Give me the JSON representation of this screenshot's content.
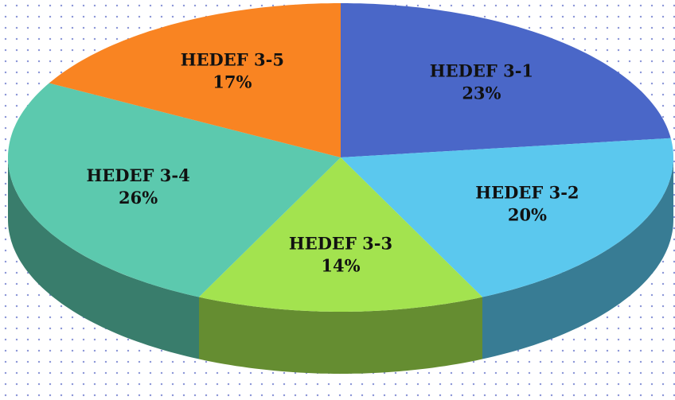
{
  "chart_data": {
    "type": "pie",
    "categories": [
      "HEDEF 3-1",
      "HEDEF 3-2",
      "HEDEF 3-3",
      "HEDEF 3-4",
      "HEDEF 3-5"
    ],
    "values": [
      23,
      20,
      14,
      26,
      17
    ],
    "value_labels": [
      "23%",
      "20%",
      "14%",
      "26%",
      "17%"
    ],
    "colors": [
      "#4a67c8",
      "#5bc8ee",
      "#a3e34f",
      "#5cc9ae",
      "#f98422"
    ]
  }
}
